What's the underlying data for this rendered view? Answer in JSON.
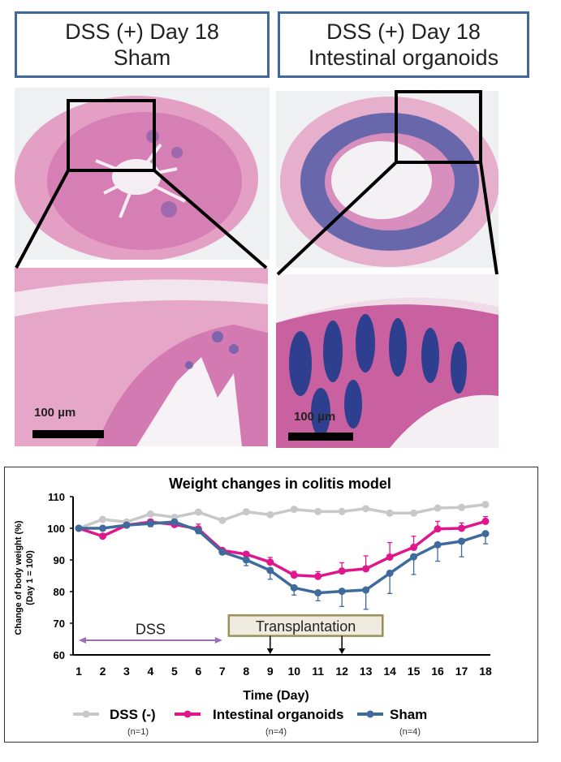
{
  "panels": {
    "left": {
      "line1": "DSS (+) Day 18",
      "line2": "Sham",
      "scale_label": "100 µm"
    },
    "right": {
      "line1": "DSS (+) Day 18",
      "line2": "Intestinal organoids",
      "scale_label": "100 µm"
    }
  },
  "colors": {
    "dss_neg": "#c8c8c8",
    "organoids": "#e0168c",
    "sham": "#3e6a9c",
    "dss_arrow": "#9b6fb5",
    "box_border": "#41689e"
  },
  "chart_data": {
    "type": "line",
    "title": "Weight changes in colitis model",
    "xlabel": "Time (Day)",
    "ylabel": "Change of body weight (%)",
    "ylabel2": "(Day 1 = 100)",
    "x": [
      1,
      2,
      3,
      4,
      5,
      6,
      7,
      8,
      9,
      10,
      11,
      12,
      13,
      14,
      15,
      16,
      17,
      18
    ],
    "ylim": [
      60,
      110
    ],
    "yticks": [
      60,
      70,
      80,
      90,
      100,
      110
    ],
    "series": [
      {
        "name": "DSS (-)",
        "n": "(n=1)",
        "color": "#c8c8c8",
        "values": [
          100,
          102.8,
          102,
          104.5,
          103.5,
          105.1,
          102.5,
          105.2,
          104.3,
          106,
          105.3,
          105.3,
          106.2,
          104.8,
          104.8,
          106.4,
          106.6,
          107.5
        ],
        "errors": [
          0,
          0,
          0,
          0,
          0,
          0,
          0,
          0,
          0,
          0,
          0,
          0,
          0,
          0,
          0,
          0,
          0,
          0
        ]
      },
      {
        "name": "Intestinal organoids",
        "n": "(n=4)",
        "color": "#e0168c",
        "values": [
          100,
          97.5,
          101,
          102,
          101.2,
          99.8,
          93,
          91.8,
          89.3,
          85.2,
          84.8,
          86.5,
          87.2,
          90.9,
          94,
          99.8,
          100,
          102.2
        ],
        "errors": [
          0,
          0.8,
          0.5,
          0.8,
          0.6,
          1.5,
          0.6,
          0.6,
          1.5,
          1.2,
          1.5,
          2.6,
          4.1,
          4.6,
          3.5,
          2.4,
          1.7,
          1.5
        ]
      },
      {
        "name": "Sham",
        "n": "(n=4)",
        "color": "#3e6a9c",
        "values": [
          100,
          100,
          101,
          101.5,
          102,
          99.3,
          92.5,
          90,
          86.7,
          81.2,
          79.6,
          80.1,
          80.5,
          85.8,
          91,
          94.8,
          95.9,
          98.3
        ],
        "errors": [
          0,
          0.5,
          0.5,
          1,
          0.6,
          1,
          0.8,
          1.8,
          2.8,
          2.3,
          2.5,
          4.8,
          6.1,
          6.4,
          5.6,
          5.2,
          4.9,
          3.2
        ]
      }
    ],
    "annotations": {
      "dss": {
        "label": "DSS",
        "from_day": 1,
        "to_day": 7
      },
      "transplantation": {
        "label": "Transplantation",
        "arrow_days": [
          9,
          12
        ]
      }
    },
    "legend_placement": "bottom"
  }
}
